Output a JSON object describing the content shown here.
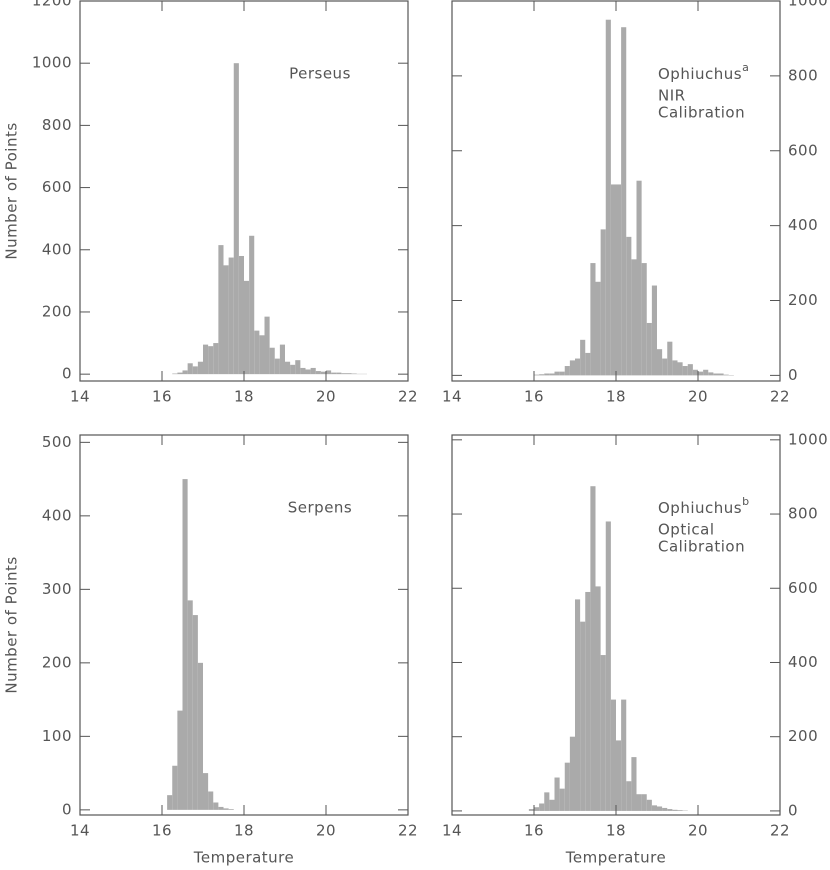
{
  "chart_data": [
    {
      "type": "histogram",
      "annotation": "Perseus",
      "y_label": "Number of Points",
      "y_axis_side": "left",
      "color": "#aaaaaa",
      "bins": [
        16.125,
        16.25,
        16.375,
        16.5,
        16.625,
        16.75,
        16.875,
        17.0,
        17.125,
        17.25,
        17.375,
        17.5,
        17.625,
        17.75,
        17.875,
        18.0,
        18.125,
        18.25,
        18.375,
        18.5,
        18.625,
        18.75,
        18.875,
        19.0,
        19.125,
        19.25,
        19.375,
        19.5,
        19.625,
        19.75,
        19.875,
        20.0,
        20.125,
        20.25,
        20.375,
        20.5,
        20.625,
        20.75,
        20.875,
        21.0,
        21.125
      ],
      "values": [
        0,
        2,
        5,
        12,
        35,
        25,
        40,
        95,
        90,
        100,
        415,
        350,
        375,
        1000,
        380,
        300,
        445,
        140,
        125,
        185,
        85,
        50,
        95,
        40,
        30,
        45,
        20,
        15,
        20,
        10,
        8,
        12,
        5,
        5,
        3,
        3,
        2,
        1,
        1,
        0
      ],
      "xlim": [
        14,
        22
      ],
      "xticks": [
        14,
        16,
        18,
        20,
        22
      ],
      "ylim": [
        -22,
        1200
      ],
      "yticks": [
        0,
        200,
        400,
        600,
        800,
        1000,
        1200
      ]
    },
    {
      "type": "histogram",
      "annotation": "Ophiuchus",
      "annotation_sup": "a",
      "notes": [
        "NIR",
        "Calibration"
      ],
      "y_axis_side": "right",
      "color": "#aaaaaa",
      "bins": [
        16.0,
        16.125,
        16.25,
        16.375,
        16.5,
        16.625,
        16.75,
        16.875,
        17.0,
        17.125,
        17.25,
        17.375,
        17.5,
        17.625,
        17.75,
        17.875,
        18.0,
        18.125,
        18.25,
        18.375,
        18.5,
        18.625,
        18.75,
        18.875,
        19.0,
        19.125,
        19.25,
        19.375,
        19.5,
        19.625,
        19.75,
        19.875,
        20.0,
        20.125,
        20.25,
        20.375,
        20.5,
        20.625,
        20.75,
        20.875,
        21.0
      ],
      "values": [
        2,
        3,
        5,
        5,
        10,
        10,
        25,
        40,
        45,
        95,
        60,
        300,
        250,
        390,
        950,
        510,
        510,
        930,
        370,
        310,
        520,
        300,
        140,
        240,
        70,
        45,
        90,
        40,
        35,
        25,
        30,
        15,
        10,
        15,
        8,
        5,
        5,
        2,
        1,
        0
      ],
      "xlim": [
        14,
        22
      ],
      "xticks": [
        14,
        16,
        18,
        20,
        22
      ],
      "ylim": [
        -15,
        1000
      ],
      "yticks": [
        0,
        200,
        400,
        600,
        800,
        1000
      ]
    },
    {
      "type": "histogram",
      "annotation": "Serpens",
      "y_label": "Number of Points",
      "x_label": "Temperature",
      "y_axis_side": "left",
      "color": "#aaaaaa",
      "bins": [
        16.125,
        16.25,
        16.375,
        16.5,
        16.625,
        16.75,
        16.875,
        17.0,
        17.125,
        17.25,
        17.375,
        17.5,
        17.625,
        17.75,
        17.875
      ],
      "values": [
        20,
        60,
        135,
        450,
        285,
        265,
        200,
        50,
        25,
        10,
        4,
        2,
        1,
        0
      ],
      "xlim": [
        14,
        22
      ],
      "xticks": [
        14,
        16,
        18,
        20,
        22
      ],
      "ylim": [
        -7,
        510
      ],
      "yticks": [
        0,
        100,
        200,
        300,
        400,
        500
      ]
    },
    {
      "type": "histogram",
      "annotation": "Ophiuchus",
      "annotation_sup": "b",
      "notes": [
        "Optical",
        "Calibration"
      ],
      "x_label": "Temperature",
      "y_axis_side": "right",
      "color": "#aaaaaa",
      "bins": [
        15.875,
        16.0,
        16.125,
        16.25,
        16.375,
        16.5,
        16.625,
        16.75,
        16.875,
        17.0,
        17.125,
        17.25,
        17.375,
        17.5,
        17.625,
        17.75,
        17.875,
        18.0,
        18.125,
        18.25,
        18.375,
        18.5,
        18.625,
        18.75,
        18.875,
        19.0,
        19.125,
        19.25,
        19.375,
        19.5,
        19.625,
        19.75,
        19.875
      ],
      "values": [
        5,
        10,
        20,
        50,
        30,
        90,
        60,
        130,
        200,
        570,
        510,
        590,
        875,
        605,
        420,
        780,
        300,
        190,
        300,
        80,
        145,
        45,
        45,
        30,
        15,
        12,
        8,
        5,
        3,
        2,
        1,
        0
      ],
      "xlim": [
        14,
        22
      ],
      "xticks": [
        14,
        16,
        18,
        20,
        22
      ],
      "ylim": [
        -11,
        1013
      ],
      "yticks": [
        0,
        200,
        400,
        600,
        800,
        1000
      ]
    }
  ]
}
